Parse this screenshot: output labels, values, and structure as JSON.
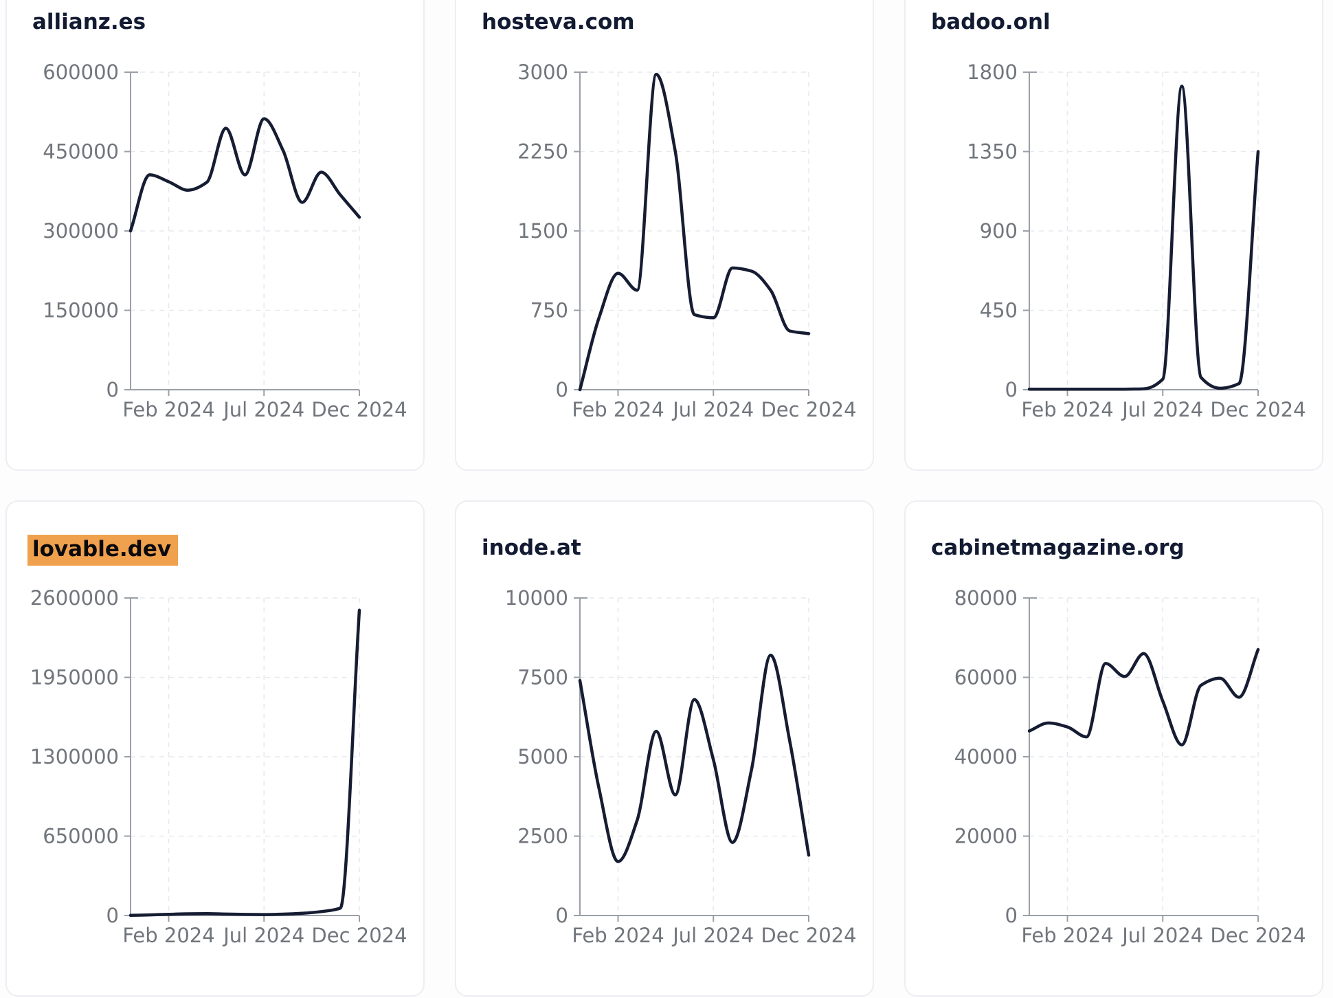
{
  "theme": {
    "page_bg": "#fdfdfe",
    "card_bg": "#ffffff",
    "card_border": "#eceef3",
    "title_color": "#131b33",
    "highlight_bg": "#f0a14e",
    "highlight_text": "#0a0a0c",
    "line_color": "#161d33",
    "grid_color": "#e7e9ee",
    "axis_color": "#9b9fa8",
    "tick_label_color": "#71757c"
  },
  "chart_data": [
    {
      "type": "line",
      "title": "allianz.es",
      "highlighted": false,
      "x": [
        "Dec 2023",
        "Jan 2024",
        "Feb 2024",
        "Mar 2024",
        "Apr 2024",
        "May 2024",
        "Jun 2024",
        "Jul 2024",
        "Aug 2024",
        "Sep 2024",
        "Oct 2024",
        "Nov 2024",
        "Dec 2024"
      ],
      "values": [
        300000,
        406000,
        393000,
        377000,
        392000,
        494000,
        406000,
        512000,
        452000,
        354000,
        411000,
        368000,
        326000
      ],
      "ylim": [
        0,
        600000
      ],
      "yticks": [
        0,
        150000,
        300000,
        450000,
        600000
      ],
      "xticks": [
        {
          "index": 2,
          "label": "Feb 2024"
        },
        {
          "index": 7,
          "label": "Jul 2024"
        },
        {
          "index": 12,
          "label": "Dec 2024"
        }
      ],
      "grid": true,
      "legend": "none"
    },
    {
      "type": "line",
      "title": "hosteva.com",
      "highlighted": false,
      "x": [
        "Dec 2023",
        "Jan 2024",
        "Feb 2024",
        "Mar 2024",
        "Apr 2024",
        "May 2024",
        "Jun 2024",
        "Jul 2024",
        "Aug 2024",
        "Sep 2024",
        "Oct 2024",
        "Nov 2024",
        "Dec 2024"
      ],
      "values": [
        0,
        680,
        1100,
        940,
        2980,
        2250,
        710,
        680,
        1150,
        1120,
        940,
        555,
        530
      ],
      "ylim": [
        0,
        3000
      ],
      "yticks": [
        0,
        750,
        1500,
        2250,
        3000
      ],
      "xticks": [
        {
          "index": 2,
          "label": "Feb 2024"
        },
        {
          "index": 7,
          "label": "Jul 2024"
        },
        {
          "index": 12,
          "label": "Dec 2024"
        }
      ],
      "grid": true,
      "legend": "none"
    },
    {
      "type": "line",
      "title": "badoo.onl",
      "highlighted": false,
      "x": [
        "Dec 2023",
        "Jan 2024",
        "Feb 2024",
        "Mar 2024",
        "Apr 2024",
        "May 2024",
        "Jun 2024",
        "Jul 2024",
        "Aug 2024",
        "Sep 2024",
        "Oct 2024",
        "Nov 2024",
        "Dec 2024"
      ],
      "values": [
        3,
        3,
        3,
        3,
        3,
        3,
        5,
        60,
        1720,
        70,
        8,
        35,
        1350
      ],
      "ylim": [
        0,
        1800
      ],
      "yticks": [
        0,
        450,
        900,
        1350,
        1800
      ],
      "xticks": [
        {
          "index": 2,
          "label": "Feb 2024"
        },
        {
          "index": 7,
          "label": "Jul 2024"
        },
        {
          "index": 12,
          "label": "Dec 2024"
        }
      ],
      "grid": true,
      "legend": "none"
    },
    {
      "type": "line",
      "title": "lovable.dev",
      "highlighted": true,
      "x": [
        "Dec 2023",
        "Jan 2024",
        "Feb 2024",
        "Mar 2024",
        "Apr 2024",
        "May 2024",
        "Jun 2024",
        "Jul 2024",
        "Aug 2024",
        "Sep 2024",
        "Oct 2024",
        "Nov 2024",
        "Dec 2024"
      ],
      "values": [
        1000,
        5000,
        10000,
        14000,
        15000,
        12000,
        9000,
        8000,
        11000,
        18000,
        32000,
        60000,
        2500000
      ],
      "ylim": [
        0,
        2600000
      ],
      "yticks": [
        0,
        650000,
        1300000,
        1950000,
        2600000
      ],
      "xticks": [
        {
          "index": 2,
          "label": "Feb 2024"
        },
        {
          "index": 7,
          "label": "Jul 2024"
        },
        {
          "index": 12,
          "label": "Dec 2024"
        }
      ],
      "grid": true,
      "legend": "none"
    },
    {
      "type": "line",
      "title": "inode.at",
      "highlighted": false,
      "x": [
        "Dec 2023",
        "Jan 2024",
        "Feb 2024",
        "Mar 2024",
        "Apr 2024",
        "May 2024",
        "Jun 2024",
        "Jul 2024",
        "Aug 2024",
        "Sep 2024",
        "Oct 2024",
        "Nov 2024",
        "Dec 2024"
      ],
      "values": [
        7400,
        4000,
        1700,
        3000,
        5800,
        3800,
        6800,
        4900,
        2300,
        4600,
        8200,
        5500,
        1900
      ],
      "ylim": [
        0,
        10000
      ],
      "yticks": [
        0,
        2500,
        5000,
        7500,
        10000
      ],
      "xticks": [
        {
          "index": 2,
          "label": "Feb 2024"
        },
        {
          "index": 7,
          "label": "Jul 2024"
        },
        {
          "index": 12,
          "label": "Dec 2024"
        }
      ],
      "grid": true,
      "legend": "none"
    },
    {
      "type": "line",
      "title": "cabinetmagazine.org",
      "highlighted": false,
      "x": [
        "Dec 2023",
        "Jan 2024",
        "Feb 2024",
        "Mar 2024",
        "Apr 2024",
        "May 2024",
        "Jun 2024",
        "Jul 2024",
        "Aug 2024",
        "Sep 2024",
        "Oct 2024",
        "Nov 2024",
        "Dec 2024"
      ],
      "values": [
        46500,
        48500,
        47500,
        45000,
        63500,
        60200,
        66000,
        54000,
        43000,
        58000,
        59800,
        55000,
        67000
      ],
      "ylim": [
        0,
        80000
      ],
      "yticks": [
        0,
        20000,
        40000,
        60000,
        80000
      ],
      "xticks": [
        {
          "index": 2,
          "label": "Feb 2024"
        },
        {
          "index": 7,
          "label": "Jul 2024"
        },
        {
          "index": 12,
          "label": "Dec 2024"
        }
      ],
      "grid": true,
      "legend": "none"
    }
  ]
}
